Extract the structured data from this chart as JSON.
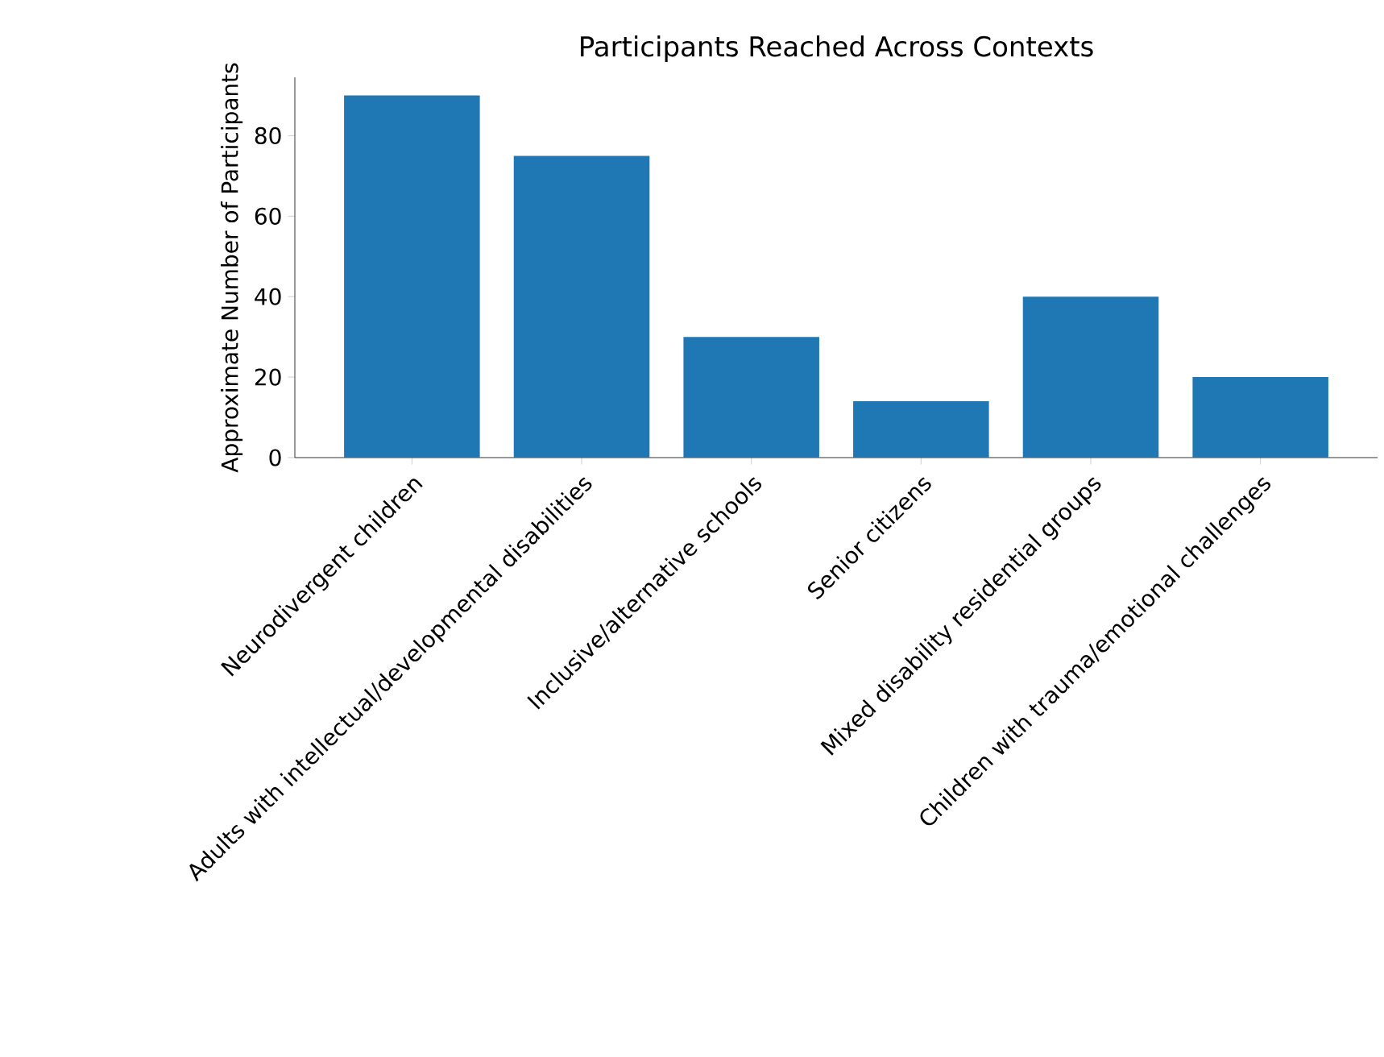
{
  "chart_data": {
    "type": "bar",
    "title": "Participants Reached Across Contexts",
    "ylabel": "Approximate Number of Participants",
    "categories": [
      "Neurodivergent children",
      "Adults with intellectual/developmental disabilities",
      "Inclusive/alternative schools",
      "Senior citizens",
      "Mixed disability residential groups",
      "Children with trauma/emotional challenges"
    ],
    "values": [
      90,
      75,
      30,
      14,
      40,
      20
    ],
    "color": "#1f77b4",
    "ylim": [
      0,
      94.5
    ],
    "yticks": [
      0,
      20,
      40,
      60,
      80
    ]
  }
}
